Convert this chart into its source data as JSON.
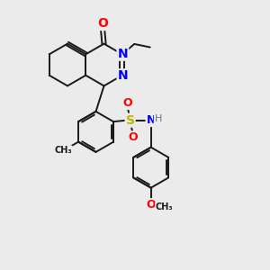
{
  "background_color": "#ebebeb",
  "bond_color": "#1a1a1a",
  "bond_width": 1.4,
  "atom_colors": {
    "O": "#ff0000",
    "N": "#0000ff",
    "S": "#b8b800",
    "C": "#1a1a1a",
    "H": "#5a7a8a"
  },
  "fig_width": 3.0,
  "fig_height": 3.0,
  "dpi": 100,
  "xlim": [
    0,
    10
  ],
  "ylim": [
    0,
    10
  ]
}
